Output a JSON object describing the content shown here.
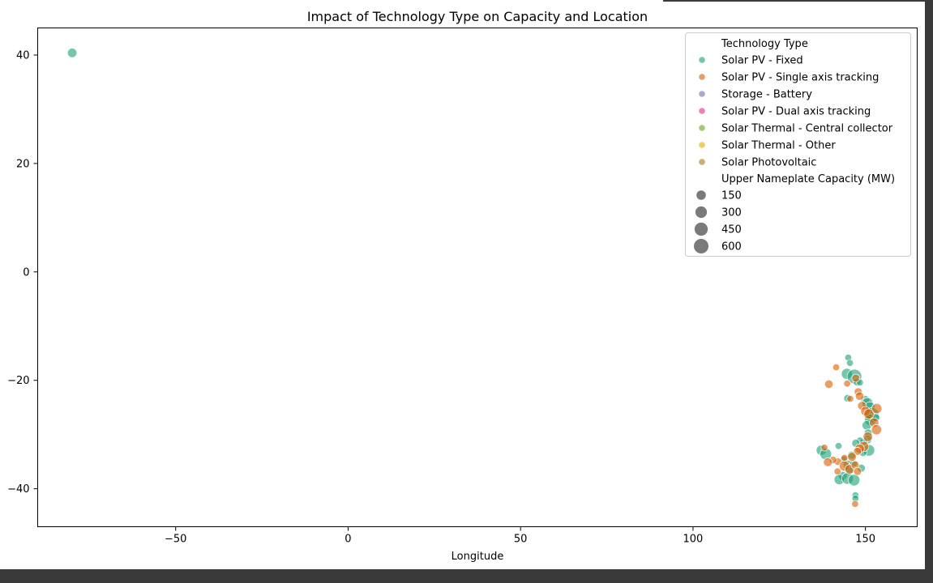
{
  "colors": {
    "dark_frame": "#3a3a3a",
    "grid_line": "#000000"
  },
  "chart_data": {
    "type": "scatter",
    "title": "Impact of Technology Type on Capacity and Location",
    "xlabel": "Longitude",
    "ylabel": "",
    "xlim": [
      -90,
      165
    ],
    "ylim": [
      -47,
      45
    ],
    "xticks": [
      -50,
      0,
      50,
      100,
      150
    ],
    "xtick_labels": [
      "−50",
      "0",
      "50",
      "100",
      "150"
    ],
    "yticks": [
      40,
      20,
      0,
      -20,
      -40
    ],
    "ytick_labels": [
      "40",
      "20",
      "0",
      "−20",
      "−40"
    ],
    "grid": false,
    "legend": {
      "placement": "upper right",
      "hue_title": "Technology Type",
      "size_title": "Upper Nameplate Capacity (MW)",
      "hue_entries": [
        {
          "label": "Solar PV - Fixed",
          "color": "#1b9e77"
        },
        {
          "label": "Solar PV - Single axis tracking",
          "color": "#d95f02"
        },
        {
          "label": "Storage - Battery",
          "color": "#7570b3"
        },
        {
          "label": "Solar PV - Dual axis tracking",
          "color": "#e7298a"
        },
        {
          "label": "Solar Thermal - Central collector",
          "color": "#66a61e"
        },
        {
          "label": "Solar Thermal - Other",
          "color": "#e6ab02"
        },
        {
          "label": "Solar Photovoltaic",
          "color": "#a6761d"
        }
      ],
      "size_entries": [
        {
          "label": "150",
          "value": 150
        },
        {
          "label": "300",
          "value": 300
        },
        {
          "label": "450",
          "value": 450
        },
        {
          "label": "600",
          "value": 600
        }
      ]
    },
    "series": [
      {
        "name": "Solar PV - Fixed",
        "color": "#1b9e77",
        "points": [
          {
            "x": -80.0,
            "y": 40.4,
            "size": 150
          },
          {
            "x": 145.0,
            "y": -15.8,
            "size": 40
          },
          {
            "x": 145.5,
            "y": -16.8,
            "size": 40
          },
          {
            "x": 144.6,
            "y": -18.8,
            "size": 250
          },
          {
            "x": 146.8,
            "y": -19.3,
            "size": 600
          },
          {
            "x": 147.6,
            "y": -20.3,
            "size": 80
          },
          {
            "x": 148.4,
            "y": -20.4,
            "size": 40
          },
          {
            "x": 144.8,
            "y": -23.3,
            "size": 60
          },
          {
            "x": 149.9,
            "y": -23.6,
            "size": 120
          },
          {
            "x": 150.6,
            "y": -24.2,
            "size": 250
          },
          {
            "x": 151.3,
            "y": -24.9,
            "size": 200
          },
          {
            "x": 151.9,
            "y": -26.4,
            "size": 600
          },
          {
            "x": 151.4,
            "y": -27.3,
            "size": 300
          },
          {
            "x": 153.0,
            "y": -26.9,
            "size": 80
          },
          {
            "x": 150.4,
            "y": -28.3,
            "size": 150
          },
          {
            "x": 150.8,
            "y": -29.7,
            "size": 80
          },
          {
            "x": 150.6,
            "y": -30.9,
            "size": 120
          },
          {
            "x": 149.6,
            "y": -31.3,
            "size": 60
          },
          {
            "x": 148.4,
            "y": -31.1,
            "size": 40
          },
          {
            "x": 147.2,
            "y": -31.6,
            "size": 80
          },
          {
            "x": 142.2,
            "y": -32.1,
            "size": 40
          },
          {
            "x": 137.2,
            "y": -32.9,
            "size": 200
          },
          {
            "x": 138.5,
            "y": -33.6,
            "size": 300
          },
          {
            "x": 151.0,
            "y": -32.9,
            "size": 300
          },
          {
            "x": 149.3,
            "y": -33.3,
            "size": 80
          },
          {
            "x": 146.0,
            "y": -33.8,
            "size": 80
          },
          {
            "x": 143.7,
            "y": -34.6,
            "size": 60
          },
          {
            "x": 144.9,
            "y": -35.6,
            "size": 150
          },
          {
            "x": 146.6,
            "y": -35.3,
            "size": 60
          },
          {
            "x": 148.8,
            "y": -36.2,
            "size": 80
          },
          {
            "x": 145.3,
            "y": -36.7,
            "size": 80
          },
          {
            "x": 143.4,
            "y": -37.6,
            "size": 120
          },
          {
            "x": 142.4,
            "y": -38.3,
            "size": 200
          },
          {
            "x": 144.8,
            "y": -38.1,
            "size": 300
          },
          {
            "x": 146.7,
            "y": -38.4,
            "size": 300
          },
          {
            "x": 147.1,
            "y": -41.2,
            "size": 40
          },
          {
            "x": 147.1,
            "y": -41.8,
            "size": 40
          }
        ]
      },
      {
        "name": "Solar PV - Single axis tracking",
        "color": "#d95f02",
        "points": [
          {
            "x": 141.5,
            "y": -17.6,
            "size": 40
          },
          {
            "x": 139.4,
            "y": -20.7,
            "size": 100
          },
          {
            "x": 147.2,
            "y": -19.6,
            "size": 80
          },
          {
            "x": 144.7,
            "y": -20.6,
            "size": 40
          },
          {
            "x": 147.9,
            "y": -22.1,
            "size": 80
          },
          {
            "x": 148.3,
            "y": -22.9,
            "size": 100
          },
          {
            "x": 145.6,
            "y": -23.4,
            "size": 40
          },
          {
            "x": 149.0,
            "y": -24.7,
            "size": 120
          },
          {
            "x": 150.0,
            "y": -25.7,
            "size": 150
          },
          {
            "x": 151.0,
            "y": -26.2,
            "size": 200
          },
          {
            "x": 153.3,
            "y": -25.2,
            "size": 200
          },
          {
            "x": 152.5,
            "y": -27.8,
            "size": 150
          },
          {
            "x": 153.2,
            "y": -29.1,
            "size": 200
          },
          {
            "x": 150.7,
            "y": -30.4,
            "size": 150
          },
          {
            "x": 149.5,
            "y": -32.2,
            "size": 200
          },
          {
            "x": 148.3,
            "y": -32.6,
            "size": 150
          },
          {
            "x": 147.7,
            "y": -33.1,
            "size": 80
          },
          {
            "x": 146.1,
            "y": -34.1,
            "size": 120
          },
          {
            "x": 143.9,
            "y": -34.3,
            "size": 40
          },
          {
            "x": 142.0,
            "y": -35.0,
            "size": 60
          },
          {
            "x": 140.6,
            "y": -34.7,
            "size": 60
          },
          {
            "x": 139.1,
            "y": -35.1,
            "size": 120
          },
          {
            "x": 138.1,
            "y": -32.4,
            "size": 40
          },
          {
            "x": 143.9,
            "y": -35.8,
            "size": 200
          },
          {
            "x": 145.4,
            "y": -36.4,
            "size": 150
          },
          {
            "x": 147.0,
            "y": -35.6,
            "size": 80
          },
          {
            "x": 141.9,
            "y": -36.8,
            "size": 40
          },
          {
            "x": 147.7,
            "y": -36.8,
            "size": 80
          },
          {
            "x": 147.0,
            "y": -42.8,
            "size": 40
          }
        ]
      }
    ]
  }
}
